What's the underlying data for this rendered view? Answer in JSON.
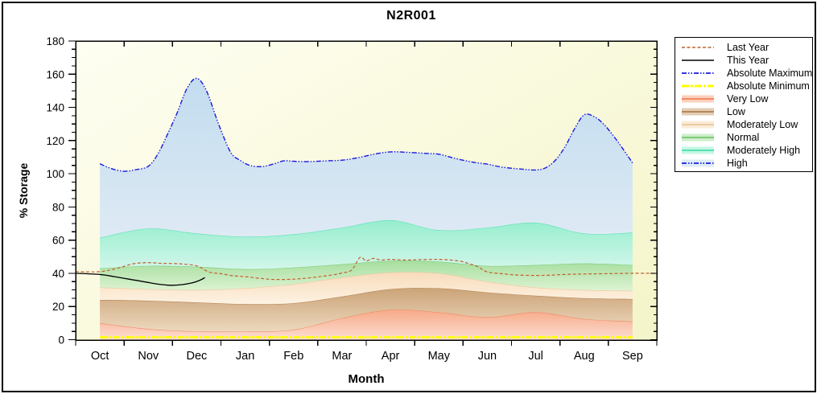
{
  "title": "N2R001",
  "axes": {
    "y_label": "% Storage",
    "x_label": "Month"
  },
  "legend": {
    "entries": [
      {
        "label": "Last Year",
        "type": "line",
        "style": "last_year"
      },
      {
        "label": "This Year",
        "type": "line",
        "style": "this_year"
      },
      {
        "label": "Absolute Maximum",
        "type": "line",
        "style": "absolute_maximum"
      },
      {
        "label": "Absolute Minimum",
        "type": "line",
        "style": "absolute_minimum"
      },
      {
        "label": "Very Low",
        "type": "band",
        "style": "Very Low"
      },
      {
        "label": "Low",
        "type": "band",
        "style": "Low"
      },
      {
        "label": "Moderately Low",
        "type": "band",
        "style": "Moderately Low"
      },
      {
        "label": "Normal",
        "type": "band",
        "style": "Normal"
      },
      {
        "label": "Moderately High",
        "type": "band",
        "style": "Moderately High"
      },
      {
        "label": "High",
        "type": "band-line",
        "style": "High"
      }
    ]
  },
  "styles": {
    "plot_bg": [
      "#FEFEF2",
      "#F5F5CB"
    ],
    "bands": {
      "Very Low": {
        "edge": "#F08A64",
        "top": "#F7A987",
        "bottom": "#FCDED2"
      },
      "Low": {
        "edge": "#B5895B",
        "top": "#CBA377",
        "bottom": "#EDD9BF"
      },
      "Moderately Low": {
        "edge": "#EFC9A1",
        "top": "#F8DCBC",
        "bottom": "#FDF2E2"
      },
      "Normal": {
        "edge": "#7CCB76",
        "top": "#A6DE9E",
        "bottom": "#DDF3D3"
      },
      "Moderately High": {
        "edge": "#57E2B1",
        "top": "#96EECE",
        "bottom": "#D2F6EA"
      },
      "High": {
        "edge": "#2121D8",
        "top": "#C2DCEF",
        "bottom": "#DEEAF4"
      }
    },
    "lines": {
      "last_year": {
        "color": "#C0622F",
        "dash": "4 2.5",
        "width": 1.2
      },
      "this_year": {
        "color": "#000000",
        "dash": "",
        "width": 1.3
      },
      "absolute_maximum": {
        "color": "#1A1ADF",
        "dash": "6 2 1.5 2 1.5 2",
        "width": 1.4
      },
      "absolute_minimum": {
        "color": "#FFFF00",
        "dash": "9 2 3 2",
        "width": 2.6
      }
    }
  },
  "chart_data": {
    "type": "area",
    "title": "N2R001",
    "xlabel": "Month",
    "ylabel": "% Storage",
    "ylim": [
      0,
      180
    ],
    "y_major_step": 20,
    "y_minor_step": 5,
    "grid": false,
    "legend_position": "outside-right",
    "categories": [
      "Oct",
      "Nov",
      "Dec",
      "Jan",
      "Feb",
      "Mar",
      "Apr",
      "May",
      "Jun",
      "Jul",
      "Aug",
      "Sep"
    ],
    "bands": [
      {
        "name": "Very Low",
        "values": [
          10,
          6.5,
          5,
          5,
          6,
          13,
          18,
          16.5,
          13.5,
          16.5,
          12.5,
          11
        ]
      },
      {
        "name": "Low",
        "values": [
          24,
          23.5,
          22.5,
          21.5,
          22,
          26,
          30.5,
          31,
          28.5,
          26.5,
          25,
          24.5
        ]
      },
      {
        "name": "Moderately Low",
        "values": [
          31.5,
          30.5,
          30,
          31,
          33.5,
          37.5,
          40.5,
          40,
          35,
          31.5,
          30,
          29.5
        ]
      },
      {
        "name": "Normal",
        "values": [
          43,
          44.5,
          44,
          42.5,
          43.5,
          45.5,
          47.5,
          47,
          44.5,
          45,
          46,
          45
        ]
      },
      {
        "name": "Moderately High",
        "values": [
          61.5,
          67,
          64,
          62,
          63.5,
          67.5,
          72,
          66,
          67.5,
          70.5,
          64,
          64.5
        ]
      }
    ],
    "lines": {
      "absolute_maximum": {
        "name": "Absolute Maximum",
        "x": [
          0,
          0.25,
          0.5,
          0.75,
          1,
          1.2,
          1.4,
          1.6,
          1.8,
          2,
          2.2,
          2.45,
          2.7,
          2.9,
          3.1,
          3.35,
          3.6,
          3.8,
          4,
          4.3,
          4.7,
          5,
          5.3,
          5.7,
          6,
          6.3,
          6.7,
          7,
          7.3,
          7.7,
          8,
          8.3,
          8.7,
          9,
          9.2,
          9.4,
          9.6,
          9.8,
          10,
          10.2,
          10.4,
          10.6,
          10.8,
          11
        ],
        "values": [
          106,
          103,
          101.5,
          102.5,
          104.5,
          112,
          124,
          137,
          151.5,
          157.5,
          150,
          130,
          113,
          108,
          105,
          104.3,
          106,
          107.8,
          107.5,
          107.3,
          107.8,
          108.2,
          109.5,
          112,
          113.2,
          113,
          112.3,
          111.8,
          109.5,
          107,
          105.8,
          104,
          102.8,
          102.3,
          103.5,
          108,
          116,
          127,
          135.5,
          134.5,
          130,
          123,
          115,
          106.5
        ]
      },
      "absolute_minimum": {
        "name": "Absolute Minimum",
        "x": [
          0,
          11
        ],
        "values": [
          1.5,
          1.5
        ]
      },
      "last_year": {
        "name": "Last Year",
        "x": [
          -0.5,
          0,
          0.35,
          0.7,
          1,
          1.3,
          1.6,
          2,
          2.25,
          2.5,
          2.75,
          3,
          3.3,
          3.6,
          4,
          4.4,
          4.8,
          5,
          5.2,
          5.37,
          5.5,
          5.65,
          5.8,
          6,
          6.3,
          6.6,
          7,
          7.4,
          7.6,
          7.8,
          8,
          8.3,
          8.6,
          9,
          9.3,
          9.6,
          10,
          10.5,
          11,
          11.5
        ],
        "values": [
          41,
          41,
          43,
          45.8,
          46.4,
          46,
          45.8,
          44.5,
          40.8,
          39.8,
          38.5,
          38,
          37,
          36.3,
          36.5,
          37.5,
          39,
          40.2,
          42,
          49.5,
          47.5,
          49,
          48,
          48.4,
          48,
          48.2,
          48.4,
          47.5,
          46,
          44,
          40.8,
          39.8,
          39,
          38.7,
          38.9,
          39.3,
          39.6,
          39.8,
          40,
          40
        ]
      },
      "this_year": {
        "name": "This Year",
        "x": [
          -0.5,
          0,
          0.3,
          0.6,
          0.9,
          1.2,
          1.45,
          1.7,
          1.9,
          2.05,
          2.17
        ],
        "values": [
          40,
          39.3,
          38,
          36.5,
          35,
          33.5,
          32.8,
          33.2,
          34.2,
          35.6,
          37.4
        ]
      }
    }
  }
}
